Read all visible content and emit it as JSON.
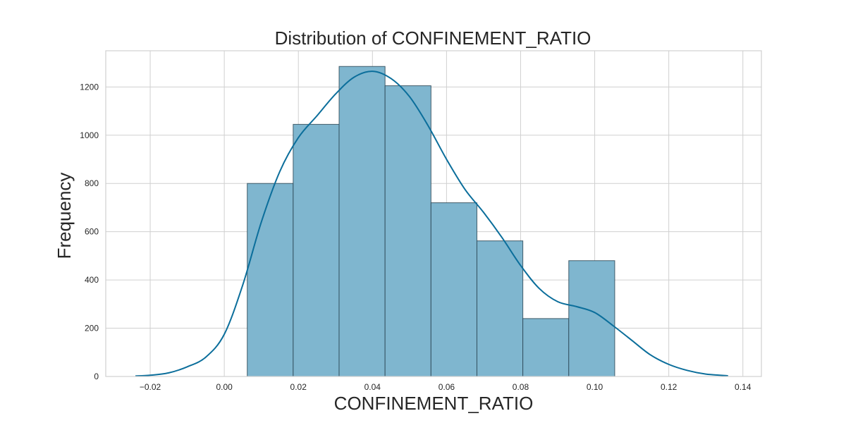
{
  "chart_data": {
    "type": "histogram",
    "title": "Distribution of CONFINEMENT_RATIO",
    "xlabel": "CONFINEMENT_RATIO",
    "ylabel": "Frequency",
    "xlim": [
      -0.032,
      0.145
    ],
    "ylim": [
      0,
      1350
    ],
    "xticks": [
      -0.02,
      0.0,
      0.02,
      0.04,
      0.06,
      0.08,
      0.1,
      0.12,
      0.14
    ],
    "xtick_labels": [
      "−0.02",
      "0.00",
      "0.02",
      "0.04",
      "0.06",
      "0.08",
      "0.10",
      "0.12",
      "0.14"
    ],
    "yticks": [
      0,
      200,
      400,
      600,
      800,
      1000,
      1200
    ],
    "ytick_labels": [
      "0",
      "200",
      "400",
      "600",
      "800",
      "1000",
      "1200"
    ],
    "grid": true,
    "bins": [
      {
        "x0": 0.0062,
        "x1": 0.0186,
        "count": 800
      },
      {
        "x0": 0.0186,
        "x1": 0.031,
        "count": 1045
      },
      {
        "x0": 0.031,
        "x1": 0.0434,
        "count": 1285
      },
      {
        "x0": 0.0434,
        "x1": 0.0558,
        "count": 1205
      },
      {
        "x0": 0.0558,
        "x1": 0.0682,
        "count": 720
      },
      {
        "x0": 0.0682,
        "x1": 0.0806,
        "count": 562
      },
      {
        "x0": 0.0806,
        "x1": 0.093,
        "count": 240
      },
      {
        "x0": 0.093,
        "x1": 0.1054,
        "count": 480
      }
    ],
    "kde": {
      "x": [
        -0.024,
        -0.02,
        -0.015,
        -0.01,
        -0.005,
        0.0,
        0.005,
        0.01,
        0.015,
        0.02,
        0.025,
        0.03,
        0.035,
        0.04,
        0.045,
        0.05,
        0.055,
        0.06,
        0.065,
        0.07,
        0.075,
        0.08,
        0.085,
        0.09,
        0.095,
        0.1,
        0.105,
        0.11,
        0.115,
        0.12,
        0.125,
        0.13,
        0.136
      ],
      "y": [
        2,
        5,
        15,
        40,
        80,
        175,
        380,
        640,
        850,
        990,
        1080,
        1170,
        1240,
        1265,
        1235,
        1160,
        1040,
        900,
        775,
        680,
        575,
        460,
        365,
        310,
        290,
        265,
        210,
        150,
        90,
        50,
        25,
        10,
        3
      ]
    },
    "colors": {
      "bar_fill": "#7fb6cf",
      "bar_edge": "#2b4755",
      "kde_line": "#0b6e9b",
      "grid": "#d0d0d0",
      "frame": "#d0d0d0"
    }
  }
}
